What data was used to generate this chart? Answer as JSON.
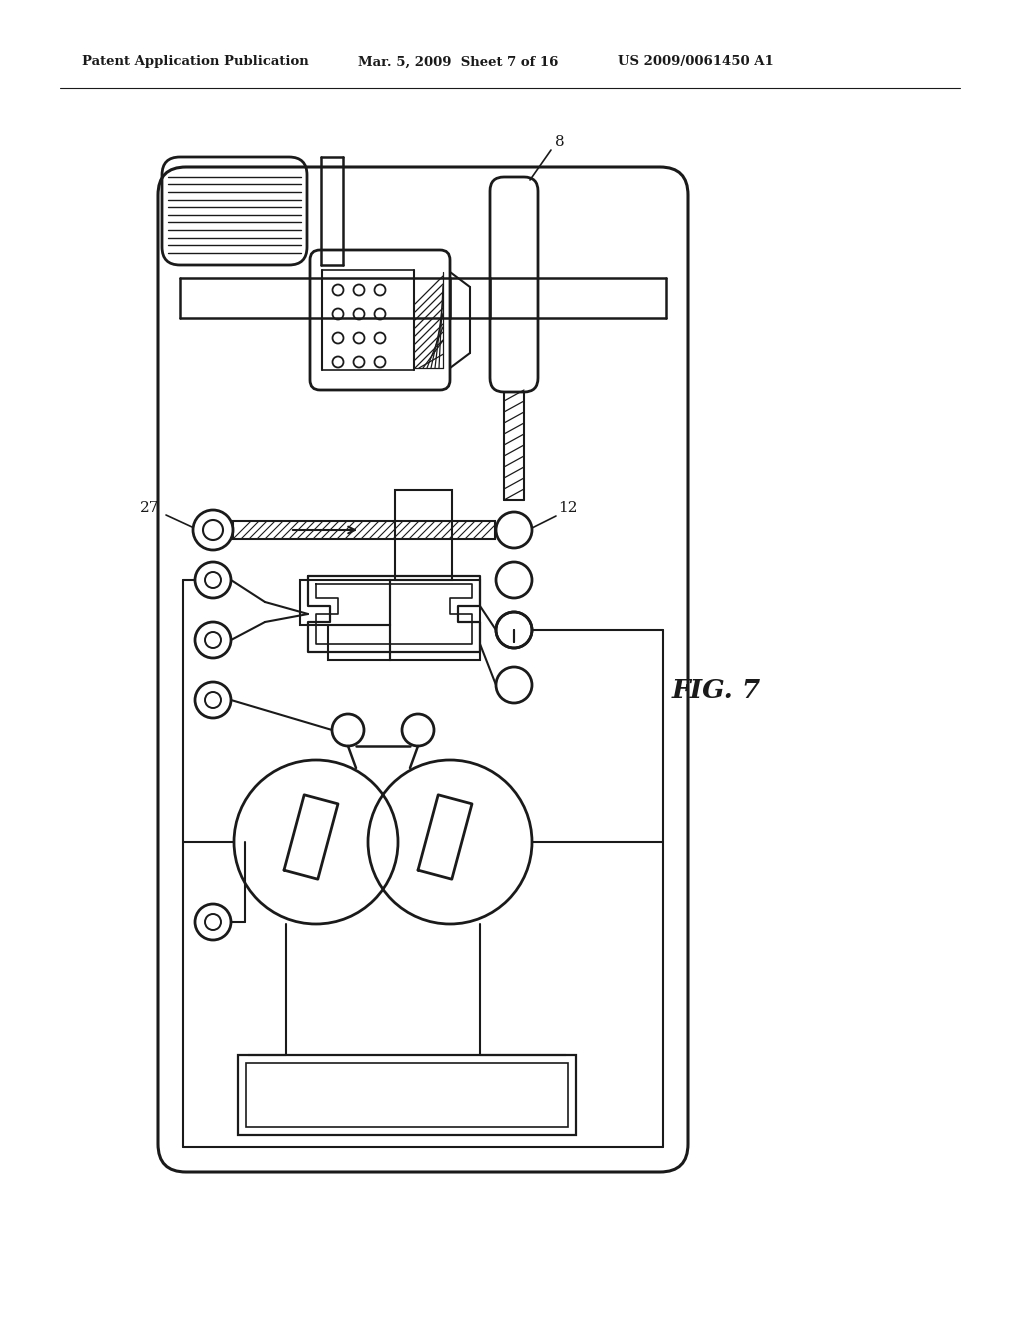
{
  "bg_color": "#ffffff",
  "line_color": "#1a1a1a",
  "header_left": "Patent Application Publication",
  "header_mid": "Mar. 5, 2009  Sheet 7 of 16",
  "header_right": "US 2009/0061450 A1",
  "fig_label": "FIG. 7",
  "label_8": "8",
  "label_12": "12",
  "label_27": "27"
}
